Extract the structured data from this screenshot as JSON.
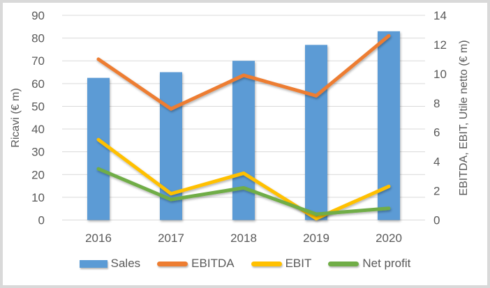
{
  "chart_data": {
    "type": "combo-bar-line",
    "categories": [
      "2016",
      "2017",
      "2018",
      "2019",
      "2020"
    ],
    "series": [
      {
        "name": "Sales",
        "type": "bar",
        "axis": "left",
        "color": "#5B9BD5",
        "values": [
          62.5,
          65,
          70,
          77,
          83
        ]
      },
      {
        "name": "EBITDA",
        "type": "line",
        "axis": "right",
        "color": "#ED7D31",
        "values": [
          11.0,
          7.6,
          9.9,
          8.5,
          12.6
        ]
      },
      {
        "name": "EBIT",
        "type": "line",
        "axis": "right",
        "color": "#FFC000",
        "values": [
          5.5,
          1.8,
          3.2,
          0.1,
          2.3
        ]
      },
      {
        "name": "Net profit",
        "type": "line",
        "axis": "right",
        "color": "#70AD47",
        "values": [
          3.5,
          1.4,
          2.2,
          0.4,
          0.8
        ]
      }
    ],
    "left_axis": {
      "title": "Ricavi (€ m)",
      "min": 0,
      "max": 90,
      "step": 10,
      "tick_labels": [
        "0",
        "10",
        "20",
        "30",
        "40",
        "50",
        "60",
        "70",
        "80",
        "90"
      ]
    },
    "right_axis": {
      "title": "EBITDA, EBIT, Utile netto (€ m)",
      "min": 0,
      "max": 14,
      "step": 2,
      "tick_labels": [
        "0",
        "2",
        "4",
        "6",
        "8",
        "10",
        "12",
        "14"
      ]
    },
    "grid": true,
    "legend_position": "bottom"
  },
  "colors": {
    "gridline": "#D9D9D9",
    "axis_text": "#595959",
    "frame_border": "#D9D9D9",
    "background": "#FFFFFF"
  }
}
